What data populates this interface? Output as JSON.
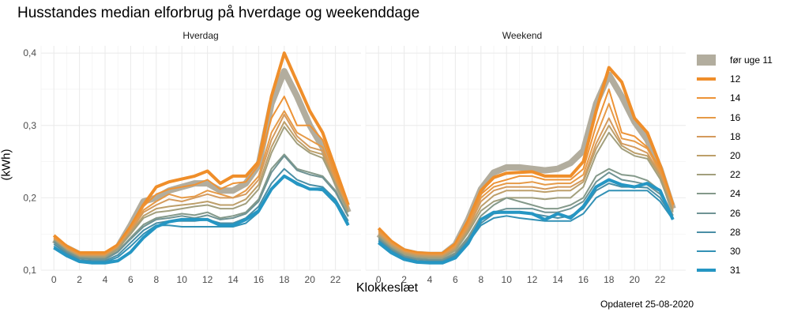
{
  "chart_data": {
    "type": "line",
    "title": "Husstandes median elforbrug på hverdage og weekenddage",
    "ylabel": "(kWh)",
    "xlabel": "Klokkeslæt",
    "caption": "Opdateret 25-08-2020",
    "x": [
      0,
      1,
      2,
      3,
      4,
      5,
      6,
      7,
      8,
      9,
      10,
      11,
      12,
      13,
      14,
      15,
      16,
      17,
      18,
      19,
      20,
      21,
      22,
      23
    ],
    "xticks": [
      0,
      2,
      4,
      6,
      8,
      10,
      12,
      14,
      16,
      18,
      20,
      22
    ],
    "xlim": [
      -1,
      24
    ],
    "ylim": [
      0.1,
      0.41
    ],
    "yticks": [
      0.1,
      0.2,
      0.3,
      0.4
    ],
    "ytick_labels": [
      "0,1",
      "0,2",
      "0,3",
      "0,4"
    ],
    "grid": true,
    "legend_position": "right",
    "panels": [
      {
        "label": "Hverdag",
        "series": [
          {
            "name": "før uge 11",
            "color": "#b2ad9e",
            "width": 8,
            "values": [
              0.142,
              0.131,
              0.122,
              0.12,
              0.121,
              0.132,
              0.162,
              0.195,
              0.2,
              0.21,
              0.215,
              0.22,
              0.22,
              0.21,
              0.21,
              0.22,
              0.245,
              0.33,
              0.375,
              0.34,
              0.3,
              0.27,
              0.225,
              0.18
            ]
          },
          {
            "name": "12",
            "color": "#ef8e2a",
            "width": 4,
            "values": [
              0.148,
              0.133,
              0.124,
              0.124,
              0.124,
              0.135,
              0.16,
              0.19,
              0.215,
              0.222,
              0.226,
              0.23,
              0.237,
              0.22,
              0.23,
              0.23,
              0.25,
              0.34,
              0.4,
              0.36,
              0.32,
              0.29,
              0.24,
              0.19
            ]
          },
          {
            "name": "14",
            "color": "#ed9336",
            "width": 2,
            "values": [
              0.145,
              0.131,
              0.122,
              0.122,
              0.122,
              0.133,
              0.158,
              0.188,
              0.205,
              0.212,
              0.215,
              0.218,
              0.225,
              0.212,
              0.22,
              0.222,
              0.245,
              0.31,
              0.34,
              0.3,
              0.3,
              0.28,
              0.23,
              0.188
            ]
          },
          {
            "name": "16",
            "color": "#e69a47",
            "width": 2,
            "values": [
              0.144,
              0.13,
              0.121,
              0.121,
              0.121,
              0.132,
              0.156,
              0.183,
              0.195,
              0.205,
              0.2,
              0.202,
              0.21,
              0.205,
              0.2,
              0.21,
              0.23,
              0.29,
              0.32,
              0.29,
              0.28,
              0.27,
              0.225,
              0.185
            ]
          },
          {
            "name": "18",
            "color": "#d49a5c",
            "width": 2,
            "values": [
              0.143,
              0.129,
              0.12,
              0.12,
              0.12,
              0.131,
              0.154,
              0.18,
              0.19,
              0.198,
              0.195,
              0.2,
              0.205,
              0.2,
              0.2,
              0.205,
              0.225,
              0.28,
              0.315,
              0.285,
              0.27,
              0.265,
              0.222,
              0.183
            ]
          },
          {
            "name": "20",
            "color": "#bd9f6a",
            "width": 2,
            "values": [
              0.142,
              0.128,
              0.119,
              0.119,
              0.119,
              0.13,
              0.152,
              0.175,
              0.185,
              0.188,
              0.19,
              0.192,
              0.195,
              0.19,
              0.19,
              0.198,
              0.218,
              0.27,
              0.305,
              0.28,
              0.265,
              0.26,
              0.22,
              0.182
            ]
          },
          {
            "name": "22",
            "color": "#a29f7d",
            "width": 2,
            "values": [
              0.141,
              0.127,
              0.118,
              0.118,
              0.118,
              0.129,
              0.15,
              0.172,
              0.18,
              0.182,
              0.185,
              0.188,
              0.19,
              0.185,
              0.185,
              0.192,
              0.212,
              0.262,
              0.298,
              0.275,
              0.262,
              0.255,
              0.218,
              0.18
            ]
          },
          {
            "name": "24",
            "color": "#84998a",
            "width": 2,
            "values": [
              0.14,
              0.126,
              0.117,
              0.116,
              0.116,
              0.126,
              0.145,
              0.163,
              0.172,
              0.175,
              0.178,
              0.176,
              0.18,
              0.172,
              0.175,
              0.18,
              0.198,
              0.24,
              0.26,
              0.24,
              0.235,
              0.23,
              0.21,
              0.175
            ]
          },
          {
            "name": "26",
            "color": "#6f9394",
            "width": 2,
            "values": [
              0.139,
              0.125,
              0.116,
              0.115,
              0.115,
              0.125,
              0.143,
              0.16,
              0.17,
              0.172,
              0.175,
              0.172,
              0.176,
              0.17,
              0.172,
              0.178,
              0.195,
              0.235,
              0.258,
              0.238,
              0.232,
              0.228,
              0.208,
              0.174
            ]
          },
          {
            "name": "28",
            "color": "#4a8ea5",
            "width": 2,
            "values": [
              0.136,
              0.123,
              0.114,
              0.113,
              0.113,
              0.121,
              0.138,
              0.155,
              0.165,
              0.168,
              0.168,
              0.168,
              0.17,
              0.165,
              0.165,
              0.172,
              0.188,
              0.22,
              0.24,
              0.225,
              0.218,
              0.215,
              0.198,
              0.168
            ]
          },
          {
            "name": "30",
            "color": "#3391b5",
            "width": 2,
            "values": [
              0.133,
              0.121,
              0.113,
              0.111,
              0.111,
              0.118,
              0.133,
              0.15,
              0.162,
              0.162,
              0.16,
              0.16,
              0.16,
              0.16,
              0.16,
              0.165,
              0.18,
              0.212,
              0.23,
              0.218,
              0.212,
              0.21,
              0.192,
              0.165
            ]
          },
          {
            "name": "31",
            "color": "#2596c3",
            "width": 4,
            "values": [
              0.131,
              0.12,
              0.112,
              0.11,
              0.11,
              0.113,
              0.125,
              0.145,
              0.16,
              0.167,
              0.17,
              0.17,
              0.17,
              0.162,
              0.162,
              0.17,
              0.182,
              0.212,
              0.23,
              0.22,
              0.212,
              0.212,
              0.195,
              0.162
            ]
          }
        ]
      },
      {
        "label": "Weekend",
        "series": [
          {
            "name": "før uge 11",
            "color": "#b2ad9e",
            "width": 8,
            "values": [
              0.15,
              0.136,
              0.126,
              0.122,
              0.121,
              0.121,
              0.135,
              0.17,
              0.212,
              0.235,
              0.242,
              0.242,
              0.24,
              0.238,
              0.24,
              0.248,
              0.265,
              0.33,
              0.37,
              0.34,
              0.305,
              0.28,
              0.24,
              0.185
            ]
          },
          {
            "name": "12",
            "color": "#ef8e2a",
            "width": 4,
            "values": [
              0.158,
              0.14,
              0.128,
              0.124,
              0.123,
              0.123,
              0.136,
              0.168,
              0.21,
              0.228,
              0.234,
              0.235,
              0.236,
              0.23,
              0.23,
              0.23,
              0.25,
              0.32,
              0.38,
              0.36,
              0.31,
              0.29,
              0.245,
              0.19
            ]
          },
          {
            "name": "14",
            "color": "#ed9336",
            "width": 2,
            "values": [
              0.155,
              0.138,
              0.127,
              0.123,
              0.122,
              0.122,
              0.134,
              0.165,
              0.205,
              0.22,
              0.225,
              0.23,
              0.23,
              0.225,
              0.225,
              0.225,
              0.24,
              0.3,
              0.35,
              0.29,
              0.285,
              0.27,
              0.24,
              0.188
            ]
          },
          {
            "name": "16",
            "color": "#e69a47",
            "width": 2,
            "values": [
              0.153,
              0.137,
              0.126,
              0.122,
              0.121,
              0.121,
              0.133,
              0.162,
              0.2,
              0.215,
              0.22,
              0.22,
              0.222,
              0.218,
              0.22,
              0.22,
              0.232,
              0.285,
              0.33,
              0.282,
              0.278,
              0.268,
              0.236,
              0.186
            ]
          },
          {
            "name": "18",
            "color": "#d49a5c",
            "width": 2,
            "values": [
              0.151,
              0.135,
              0.125,
              0.121,
              0.12,
              0.12,
              0.131,
              0.158,
              0.195,
              0.21,
              0.215,
              0.215,
              0.215,
              0.212,
              0.215,
              0.215,
              0.225,
              0.275,
              0.31,
              0.275,
              0.27,
              0.262,
              0.232,
              0.184
            ]
          },
          {
            "name": "20",
            "color": "#bd9f6a",
            "width": 2,
            "values": [
              0.149,
              0.134,
              0.124,
              0.12,
              0.119,
              0.119,
              0.129,
              0.155,
              0.188,
              0.203,
              0.21,
              0.21,
              0.21,
              0.208,
              0.21,
              0.21,
              0.222,
              0.268,
              0.3,
              0.272,
              0.262,
              0.258,
              0.23,
              0.182
            ]
          },
          {
            "name": "22",
            "color": "#a29f7d",
            "width": 2,
            "values": [
              0.147,
              0.132,
              0.122,
              0.118,
              0.117,
              0.117,
              0.127,
              0.152,
              0.182,
              0.195,
              0.2,
              0.2,
              0.2,
              0.198,
              0.2,
              0.2,
              0.215,
              0.26,
              0.29,
              0.268,
              0.258,
              0.254,
              0.226,
              0.18
            ]
          },
          {
            "name": "24",
            "color": "#84998a",
            "width": 2,
            "values": [
              0.145,
              0.13,
              0.12,
              0.116,
              0.115,
              0.115,
              0.124,
              0.146,
              0.175,
              0.19,
              0.2,
              0.195,
              0.19,
              0.185,
              0.185,
              0.19,
              0.2,
              0.23,
              0.24,
              0.232,
              0.23,
              0.224,
              0.21,
              0.176
            ]
          },
          {
            "name": "26",
            "color": "#6f9394",
            "width": 2,
            "values": [
              0.143,
              0.129,
              0.119,
              0.115,
              0.114,
              0.114,
              0.122,
              0.143,
              0.17,
              0.18,
              0.185,
              0.185,
              0.185,
              0.18,
              0.18,
              0.185,
              0.195,
              0.222,
              0.235,
              0.225,
              0.222,
              0.218,
              0.205,
              0.175
            ]
          },
          {
            "name": "28",
            "color": "#4a8ea5",
            "width": 2,
            "values": [
              0.141,
              0.127,
              0.117,
              0.113,
              0.112,
              0.112,
              0.12,
              0.14,
              0.165,
              0.178,
              0.18,
              0.18,
              0.178,
              0.175,
              0.172,
              0.175,
              0.185,
              0.21,
              0.22,
              0.215,
              0.215,
              0.214,
              0.2,
              0.172
            ]
          },
          {
            "name": "30",
            "color": "#3391b5",
            "width": 2,
            "values": [
              0.14,
              0.126,
              0.116,
              0.112,
              0.111,
              0.111,
              0.118,
              0.138,
              0.162,
              0.172,
              0.175,
              0.172,
              0.17,
              0.168,
              0.168,
              0.168,
              0.178,
              0.2,
              0.21,
              0.21,
              0.21,
              0.21,
              0.195,
              0.17
            ]
          },
          {
            "name": "31",
            "color": "#2596c3",
            "width": 4,
            "values": [
              0.138,
              0.124,
              0.115,
              0.111,
              0.11,
              0.11,
              0.117,
              0.137,
              0.17,
              0.18,
              0.18,
              0.18,
              0.178,
              0.17,
              0.178,
              0.172,
              0.188,
              0.215,
              0.225,
              0.218,
              0.215,
              0.22,
              0.21,
              0.17
            ]
          }
        ]
      }
    ]
  }
}
